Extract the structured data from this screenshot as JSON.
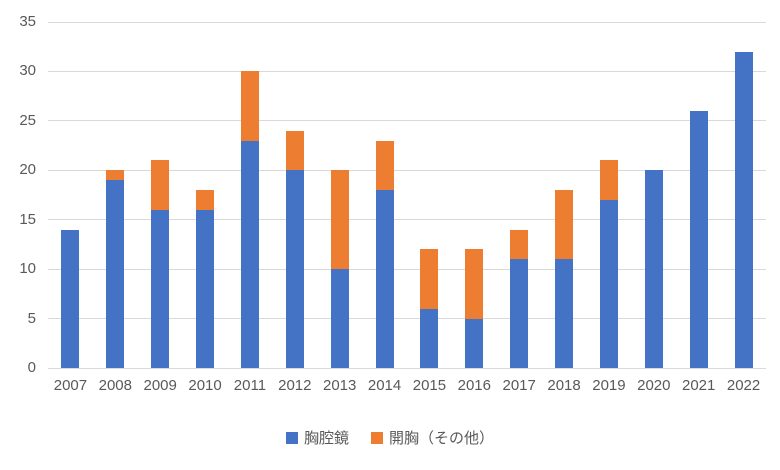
{
  "chart_data": {
    "type": "bar",
    "stacked": true,
    "title": "",
    "xlabel": "",
    "ylabel": "",
    "categories": [
      "2007",
      "2008",
      "2009",
      "2010",
      "2011",
      "2012",
      "2013",
      "2014",
      "2015",
      "2016",
      "2017",
      "2018",
      "2019",
      "2020",
      "2021",
      "2022"
    ],
    "series": [
      {
        "name": "胸腔鏡",
        "color": "#4472C4",
        "values": [
          14,
          19,
          16,
          16,
          23,
          20,
          10,
          18,
          6,
          5,
          11,
          11,
          17,
          20,
          26,
          32
        ]
      },
      {
        "name": "開胸（その他）",
        "color": "#ED7D31",
        "values": [
          0,
          1,
          5,
          2,
          7,
          4,
          10,
          5,
          6,
          7,
          3,
          7,
          4,
          0,
          0,
          0
        ]
      }
    ],
    "totals": [
      14,
      20,
      21,
      18,
      30,
      24,
      20,
      23,
      12,
      12,
      14,
      18,
      21,
      20,
      26,
      32
    ],
    "ylim": [
      0,
      35
    ],
    "yticks": [
      0,
      5,
      10,
      15,
      20,
      25,
      30,
      35
    ],
    "grid": true,
    "legend_position": "bottom",
    "colors": {
      "gridline": "#d9d9d9",
      "axis_text": "#595959",
      "background": "#ffffff"
    }
  }
}
